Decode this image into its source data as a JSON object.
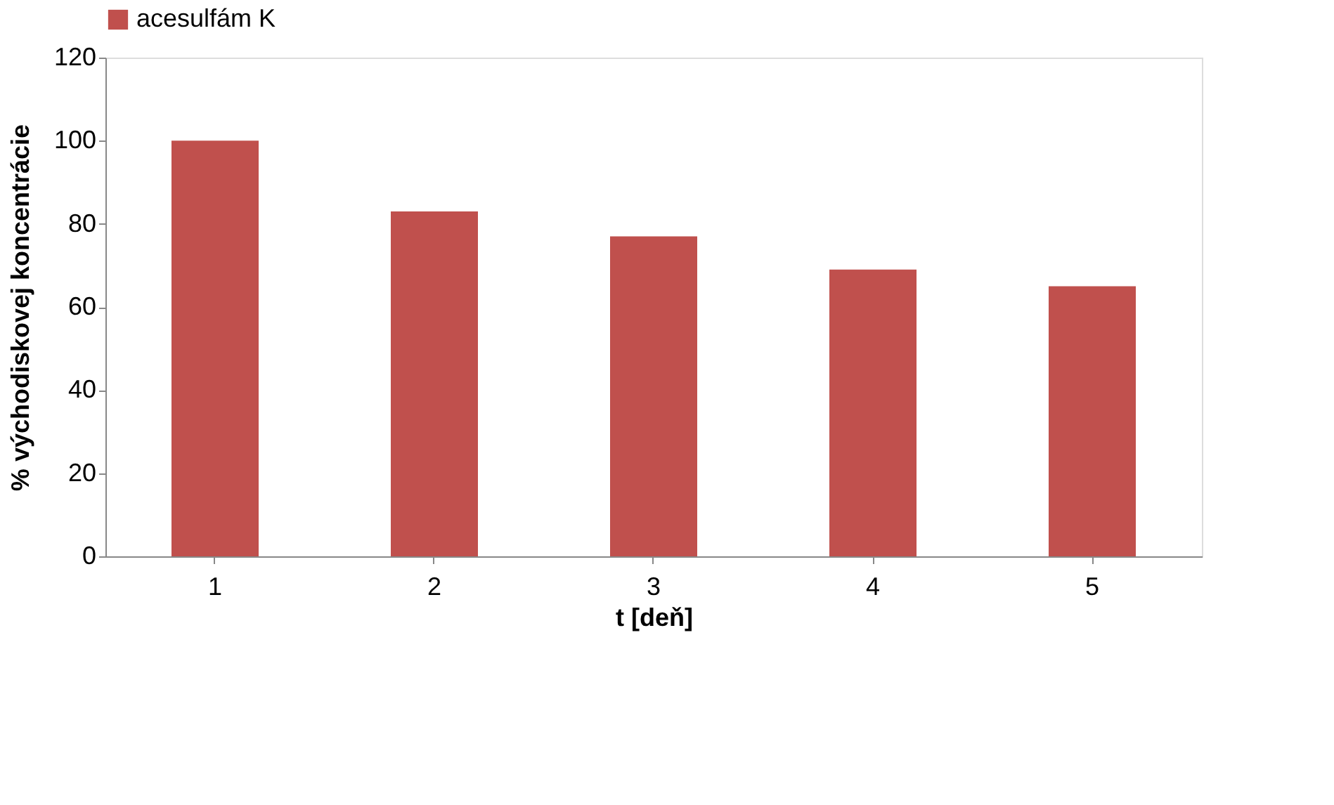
{
  "chart_data": {
    "type": "bar",
    "xlabel": "t [deň]",
    "ylabel": "% východiskovej koncentrácie",
    "categories": [
      "1",
      "2",
      "3",
      "4",
      "5"
    ],
    "series": [
      {
        "name": "acesulfám K",
        "color": "#c0504d",
        "values": [
          100,
          83,
          77,
          69,
          65
        ]
      }
    ],
    "ylim": [
      0,
      120
    ],
    "yticks": [
      0,
      20,
      40,
      60,
      80,
      100,
      120
    ],
    "grid": false,
    "legend": "top"
  }
}
